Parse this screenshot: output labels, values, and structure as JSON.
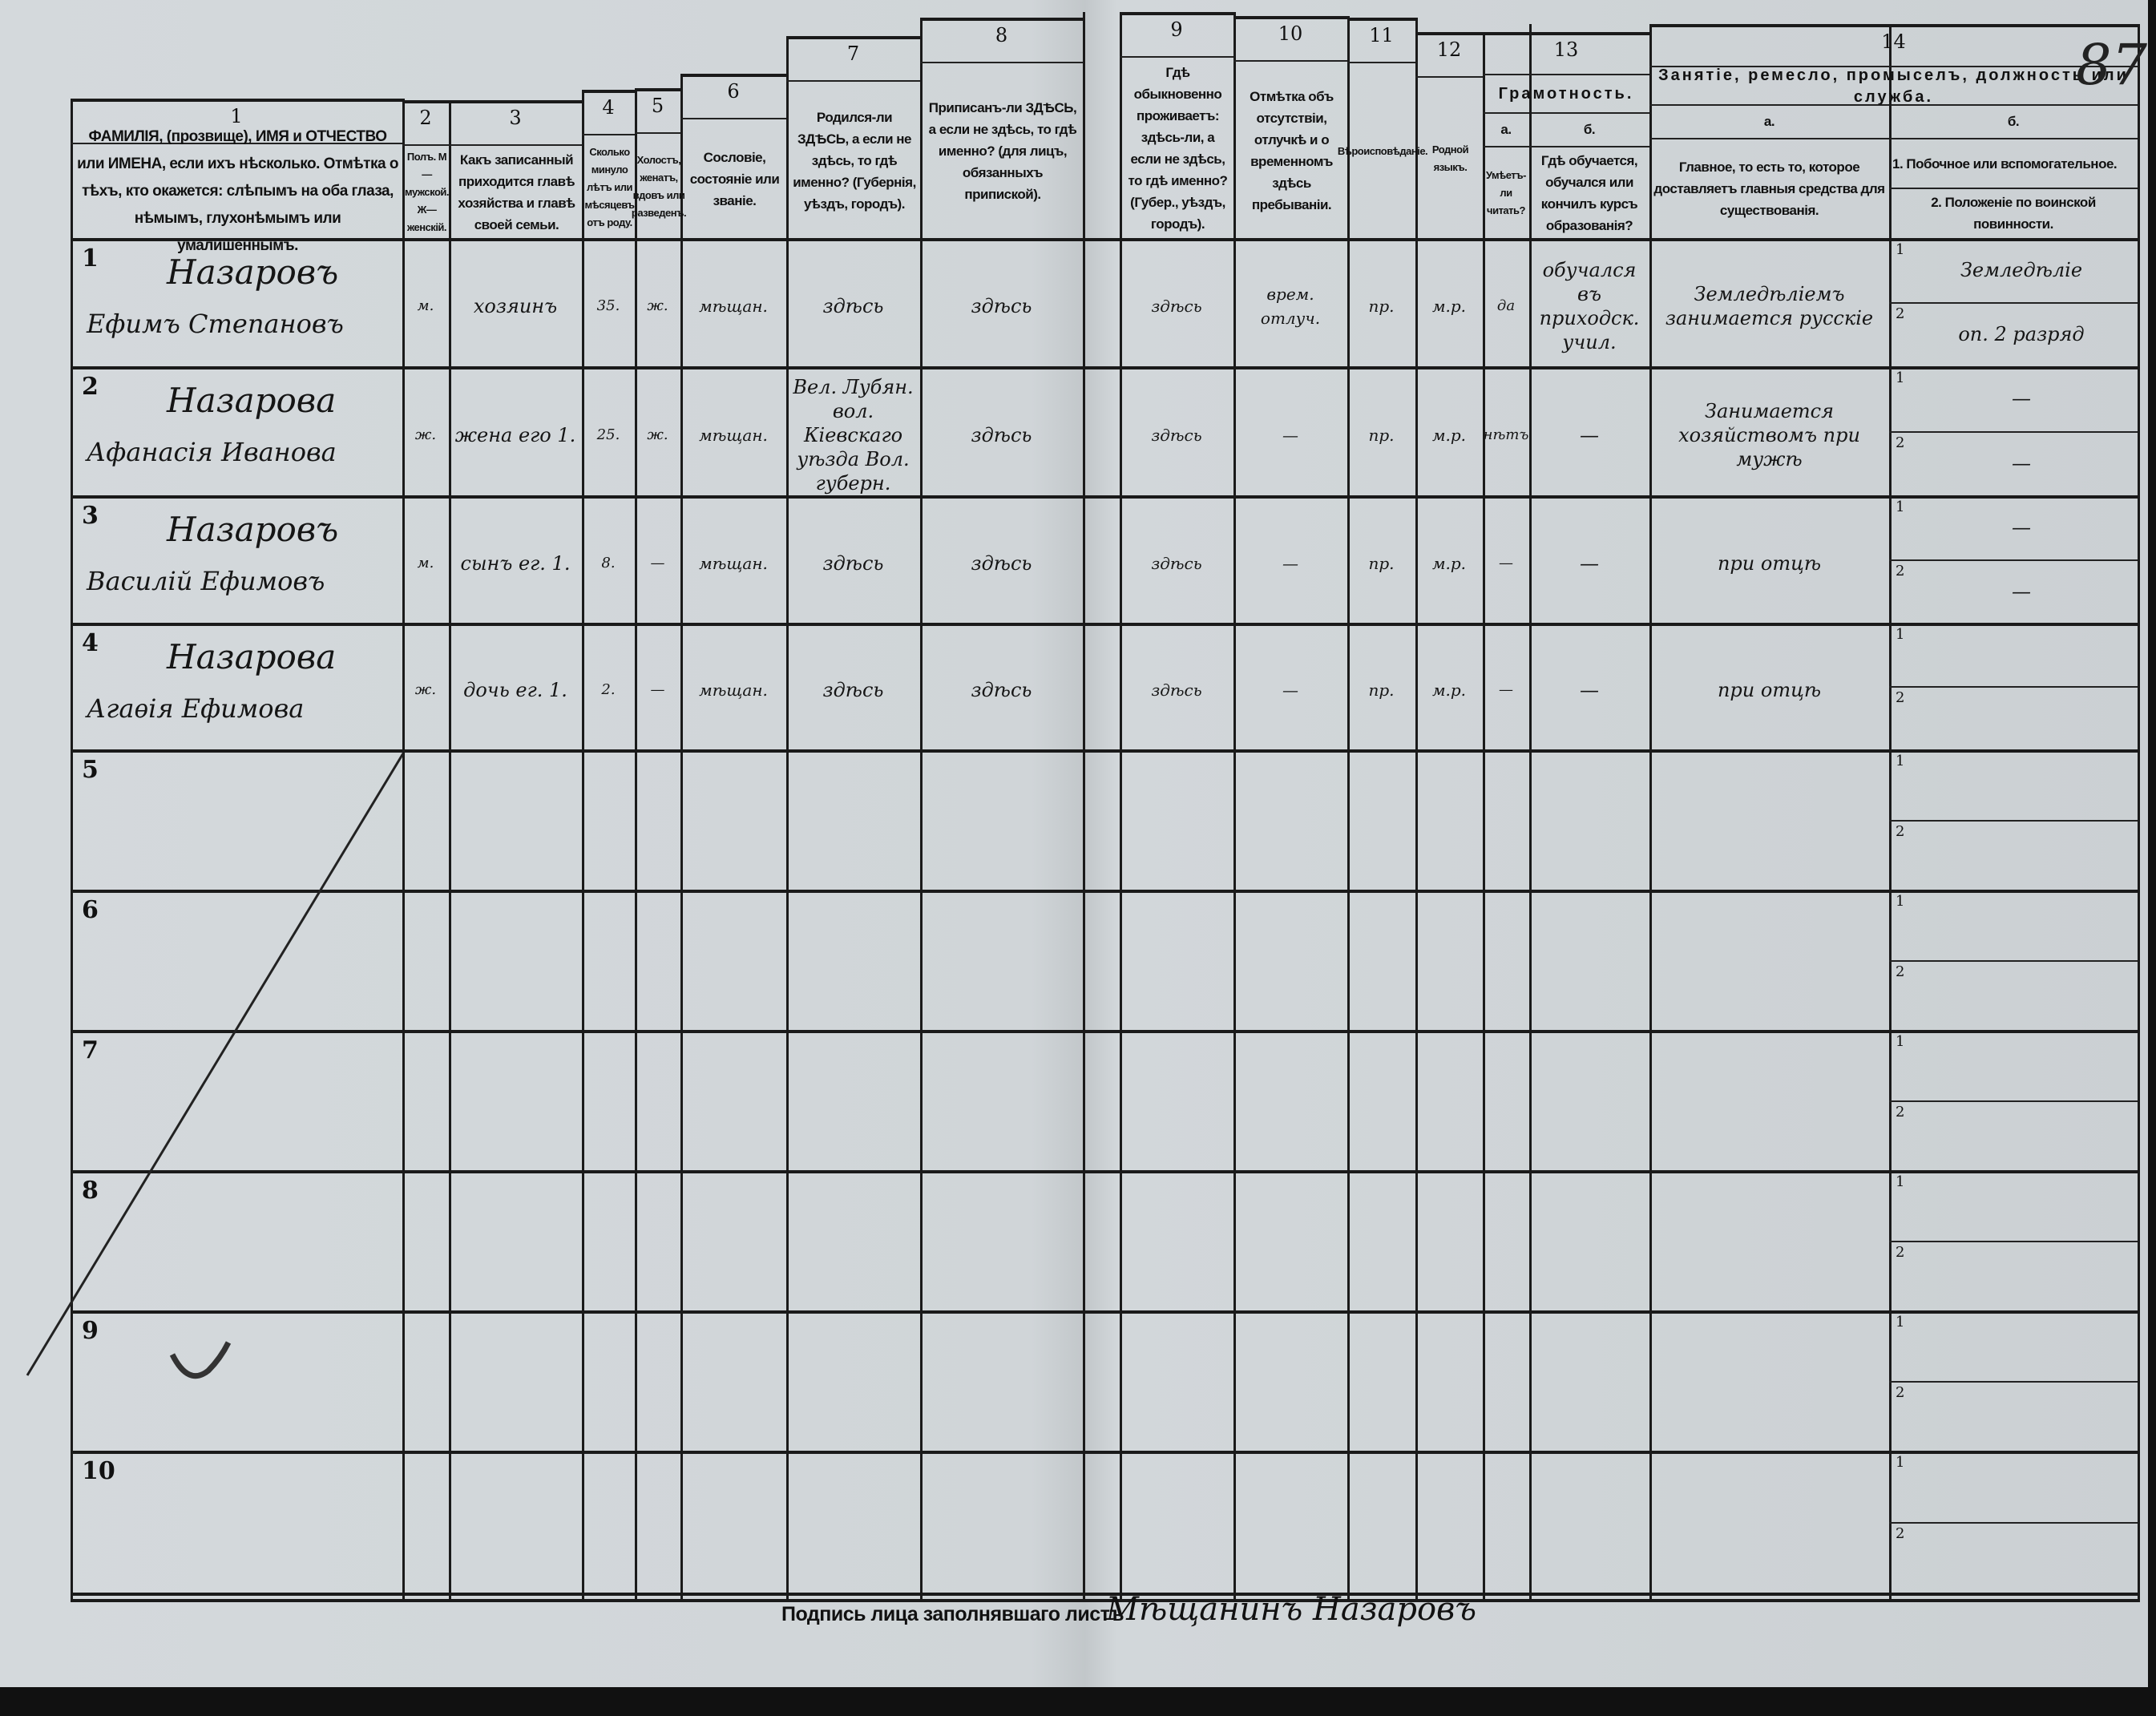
{
  "page_number": "87",
  "header": {
    "columns": [
      {
        "num": "1",
        "text": "ФАМИЛІЯ, (прозвище), ИМЯ и ОТЧЕСТВО или ИМЕНА, если ихъ нѣсколько. Отмѣтка о тѣхъ, кто окажется: слѣпымъ на оба глаза, нѣмымъ, глухонѣмымъ или умалишеннымъ."
      },
      {
        "num": "2",
        "text": "Полъ. М—мужской. Ж—женскій."
      },
      {
        "num": "3",
        "text": "Какъ записанный приходится главѣ хозяйства и главѣ своей семьи."
      },
      {
        "num": "4",
        "text": "Сколько минуло лѣтъ или мѣсяцевъ отъ роду."
      },
      {
        "num": "5",
        "text": "Холостъ, женатъ, вдовъ или разведенъ."
      },
      {
        "num": "6",
        "text": "Сословіе, состояніе или званіе."
      },
      {
        "num": "7",
        "text": "Родился-ли ЗДѢСЬ, а если не здѣсь, то гдѣ именно? (Губернія, уѣздъ, городъ)."
      },
      {
        "num": "8",
        "text": "Приписанъ-ли ЗДѢСЬ, а если не здѣсь, то гдѣ именно? (для лицъ, обязанныхъ припиской)."
      },
      {
        "num": "9",
        "text": "Гдѣ обыкновенно проживаетъ: здѣсь-ли, а если не здѣсь, то гдѣ именно? (Губер., уѣздъ, городъ)."
      },
      {
        "num": "10",
        "text": "Отмѣтка объ отсутствіи, отлучкѣ и о временномъ здѣсь пребываніи."
      },
      {
        "num": "11",
        "text": "Вѣроисповѣданіе."
      },
      {
        "num": "12",
        "text": "Родной языкъ."
      }
    ],
    "literacy": {
      "num": "13",
      "title": "Грамотность.",
      "a_label": "а.",
      "a_text": "Умѣетъ-ли читать?",
      "b_label": "б.",
      "b_text": "Гдѣ обучается, обучался или кончилъ курсъ образованія?"
    },
    "occupation": {
      "num": "14",
      "title": "Занятіе, ремесло, промыселъ, должность или служба.",
      "a_label": "а.",
      "a_text": "Главное, то есть то, которое доставляетъ главныя средства для существованія.",
      "b_label": "б.",
      "b_text1": "1. Побочное или вспомогательное.",
      "b_text2": "2. Положеніе по воинской повинности."
    }
  },
  "subrow_labels": [
    "1",
    "2"
  ],
  "rows": [
    {
      "num": "1",
      "surname": "Назаровъ",
      "given": "Ефимъ Степановъ",
      "sex": "м.",
      "relation": "хозяинъ",
      "age": "35.",
      "marital": "ж.",
      "estate": "мѣщан.",
      "birthplace": "здѣсь",
      "registered": "здѣсь",
      "residence": "здѣсь",
      "absence": "врем. отлуч.",
      "religion": "пр.",
      "language": "м.р.",
      "literate": "да",
      "school": "обучался въ приходск. учил.",
      "occupation_main": "Земледѣліемъ занимается русскіе",
      "occupation_side": "Земледѣліе",
      "military": "оп. 2 разряд"
    },
    {
      "num": "2",
      "surname": "Назарова",
      "given": "Афанасія Иванова",
      "sex": "ж.",
      "relation": "жена его 1.",
      "age": "25.",
      "marital": "ж.",
      "estate": "мѣщан.",
      "birthplace": "Вел. Лубян. вол. Кіевскаго уѣзда Вол. губерн.",
      "registered": "здѣсь",
      "residence": "здѣсь",
      "absence": "—",
      "religion": "пр.",
      "language": "м.р.",
      "literate": "нѣтъ",
      "school": "—",
      "occupation_main": "Занимается хозяйствомъ при мужѣ",
      "occupation_side": "—",
      "military": "—"
    },
    {
      "num": "3",
      "surname": "Назаровъ",
      "given": "Василій Ефимовъ",
      "sex": "м.",
      "relation": "сынъ ег. 1.",
      "age": "8.",
      "marital": "—",
      "estate": "мѣщан.",
      "birthplace": "здѣсь",
      "registered": "здѣсь",
      "residence": "здѣсь",
      "absence": "—",
      "religion": "пр.",
      "language": "м.р.",
      "literate": "—",
      "school": "—",
      "occupation_main": "при отцѣ",
      "occupation_side": "—",
      "military": "—"
    },
    {
      "num": "4",
      "surname": "Назарова",
      "given": "Агаѳія Ефимова",
      "sex": "ж.",
      "relation": "дочь ег. 1.",
      "age": "2.",
      "marital": "—",
      "estate": "мѣщан.",
      "birthplace": "здѣсь",
      "registered": "здѣсь",
      "residence": "здѣсь",
      "absence": "—",
      "religion": "пр.",
      "language": "м.р.",
      "literate": "—",
      "school": "—",
      "occupation_main": "при отцѣ",
      "occupation_side": "",
      "military": ""
    },
    {
      "num": "5"
    },
    {
      "num": "6"
    },
    {
      "num": "7"
    },
    {
      "num": "8"
    },
    {
      "num": "9"
    },
    {
      "num": "10"
    }
  ],
  "footer": {
    "label": "Подпись лица заполнявшаго листъ",
    "signature": "Мѣщанинъ Назаровъ"
  }
}
